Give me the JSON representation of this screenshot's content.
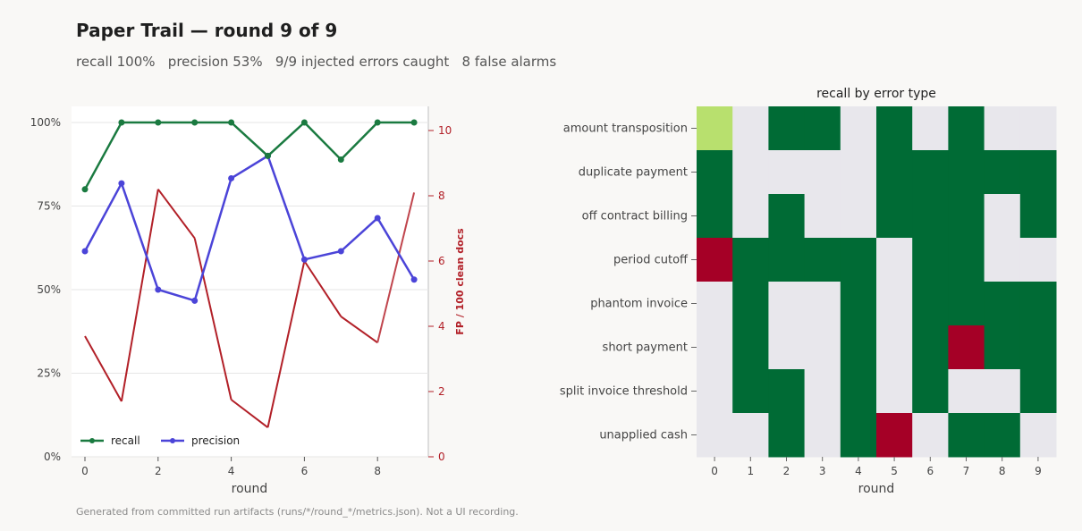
{
  "header": {
    "title": "Paper Trail — round 9 of 9",
    "subtitle": "recall 100%   precision 53%   9/9 injected errors caught   8 false alarms"
  },
  "footer": {
    "note": "Generated from committed run artifacts (runs/*/round_*/metrics.json). Not a UI recording."
  },
  "colors": {
    "recall": "#1a7a40",
    "precision": "#4b44d8",
    "fp": "#b22028",
    "fp_last": "#c0454d",
    "heat_green": "#006b35",
    "heat_light_green": "#b8e06e",
    "heat_red": "#a50026",
    "heat_empty": "#e8e7ec"
  },
  "chart_data": [
    {
      "type": "line",
      "x": [
        0,
        1,
        2,
        3,
        4,
        5,
        6,
        7,
        8,
        9
      ],
      "xlabel": "round",
      "x_ticks": [
        "0",
        "2",
        "4",
        "6",
        "8"
      ],
      "ylim": [
        0,
        1
      ],
      "y_ticks": [
        "0%",
        "25%",
        "50%",
        "75%",
        "100%"
      ],
      "grid": true,
      "legend": "bottom-left",
      "series": [
        {
          "name": "recall",
          "axis": "left",
          "values": [
            0.8,
            1.0,
            1.0,
            1.0,
            1.0,
            0.9,
            1.0,
            0.889,
            1.0,
            1.0
          ]
        },
        {
          "name": "precision",
          "axis": "left",
          "values": [
            0.615,
            0.818,
            0.5,
            0.467,
            0.833,
            0.9,
            0.59,
            0.615,
            0.714,
            0.53
          ]
        },
        {
          "axis": "right",
          "values": [
            3.7,
            1.7,
            8.2,
            6.7,
            1.75,
            0.9,
            6.0,
            4.3,
            3.5,
            8.1
          ]
        }
      ],
      "y2label": "FP / 100 clean docs",
      "y2lim": [
        0,
        10.7
      ],
      "y2_ticks": [
        "0",
        "2",
        "4",
        "6",
        "8",
        "10"
      ]
    },
    {
      "type": "heatmap",
      "title": "recall by error type",
      "xlabel": "round",
      "columns": [
        "0",
        "1",
        "2",
        "3",
        "4",
        "5",
        "6",
        "7",
        "8",
        "9"
      ],
      "rows": [
        "amount transposition",
        "duplicate payment",
        "off contract billing",
        "period cutoff",
        "phantom invoice",
        "short payment",
        "split invoice threshold",
        "unapplied cash"
      ],
      "values": [
        [
          0.67,
          null,
          1,
          1,
          null,
          1,
          null,
          1,
          null,
          null
        ],
        [
          1,
          null,
          null,
          null,
          null,
          1,
          1,
          1,
          1,
          1
        ],
        [
          1,
          null,
          1,
          null,
          null,
          1,
          1,
          1,
          null,
          1
        ],
        [
          0,
          1,
          1,
          1,
          1,
          null,
          1,
          1,
          null,
          null
        ],
        [
          null,
          1,
          null,
          null,
          1,
          null,
          1,
          1,
          1,
          1
        ],
        [
          null,
          1,
          null,
          null,
          1,
          null,
          1,
          0,
          1,
          1
        ],
        [
          null,
          1,
          1,
          null,
          1,
          null,
          1,
          null,
          null,
          1
        ],
        [
          null,
          null,
          1,
          null,
          1,
          0,
          null,
          1,
          1,
          null
        ]
      ]
    }
  ]
}
